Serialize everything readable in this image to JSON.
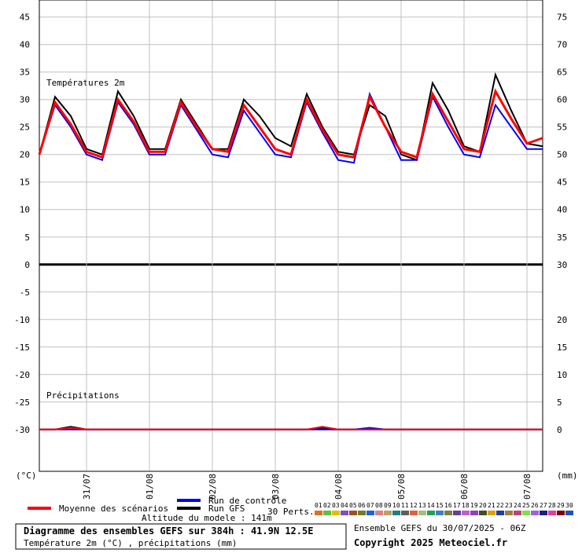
{
  "chart_data": {
    "type": "line",
    "title": "Diagramme des ensembles GEFS sur 384h : 41.9N 12.5E",
    "subtitle": "Température 2m (°C) , précipitations (mm)",
    "run_info": "Ensemble GEFS du 30/07/2025 - 06Z",
    "copyright": "Copyright 2025 Meteociel.fr",
    "altitude": "Altitude du modele : 141m",
    "temp_label": "Températures 2m",
    "precip_label": "Précipitations",
    "y_unit": "(°C)",
    "y2_unit": "(mm)",
    "members_label": "30 Perts.",
    "grid": true,
    "xlim": [
      0,
      192
    ],
    "xticks": [
      {
        "value": 18,
        "label": "31/07"
      },
      {
        "value": 42,
        "label": "01/08"
      },
      {
        "value": 66,
        "label": "02/08"
      },
      {
        "value": 90,
        "label": "03/08"
      },
      {
        "value": 114,
        "label": "04/08"
      },
      {
        "value": 138,
        "label": "05/08"
      },
      {
        "value": 162,
        "label": "06/08"
      },
      {
        "value": 186,
        "label": "07/08"
      }
    ],
    "ylim": [
      -37.6,
      48.1
    ],
    "yticks": [
      -30,
      -25,
      -20,
      -15,
      -10,
      -5,
      0,
      5,
      10,
      15,
      20,
      25,
      30,
      35,
      40,
      45
    ],
    "y2lim": [
      -7.6,
      78.1
    ],
    "y2ticks": [
      0,
      5,
      10,
      15,
      20,
      30,
      35,
      40,
      45,
      50,
      55,
      60,
      65,
      70,
      75
    ],
    "x": [
      0,
      6,
      12,
      18,
      24,
      30,
      36,
      42,
      48,
      54,
      60,
      66,
      72,
      78,
      84,
      90,
      96,
      102,
      108,
      114,
      120,
      126,
      132,
      138,
      144,
      150,
      156,
      162,
      168,
      174,
      180,
      186,
      192
    ],
    "series": [
      {
        "name": "Run GFS",
        "color": "#000000",
        "values": [
          20,
          30.5,
          27,
          21,
          20,
          31.5,
          27,
          21,
          21,
          30,
          25.5,
          21,
          21,
          30,
          27,
          23,
          21.5,
          31,
          25,
          20.5,
          20,
          29,
          27,
          20,
          19,
          33,
          28,
          21.5,
          20.5,
          34.5,
          28,
          22,
          21.5
        ],
        "precip": [
          0,
          0,
          0.5,
          0,
          0,
          0,
          0,
          0,
          0,
          0,
          0,
          0,
          0,
          0,
          0,
          0,
          0,
          0,
          0.3,
          0,
          0,
          0,
          0,
          0,
          0,
          0,
          0,
          0,
          0,
          0,
          0,
          0,
          0
        ]
      },
      {
        "name": "Run de contrôle",
        "color": "#0000ff",
        "values": [
          20,
          29,
          25,
          20,
          19,
          29.5,
          25.5,
          20,
          20,
          29,
          24.5,
          20,
          19.5,
          28,
          24,
          20,
          19.5,
          29.5,
          24,
          19,
          18.5,
          31,
          25,
          19,
          19,
          30.5,
          25,
          20,
          19.5,
          29,
          25,
          21,
          21
        ],
        "precip": [
          0,
          0,
          0,
          0,
          0,
          0,
          0,
          0,
          0,
          0,
          0,
          0,
          0,
          0,
          0,
          0,
          0,
          0,
          0,
          0,
          0,
          0.3,
          0,
          0,
          0,
          0,
          0,
          0,
          0,
          0,
          0,
          0,
          0
        ]
      },
      {
        "name": "Moyenne des scénarios",
        "color": "#ff0000",
        "values": [
          20,
          29.5,
          25.5,
          20.5,
          19.5,
          30,
          26,
          20.5,
          20.5,
          29.5,
          25,
          21,
          20.5,
          29,
          25,
          21,
          20,
          30,
          24.5,
          20,
          19.5,
          30.5,
          25,
          20.5,
          19.5,
          31,
          26,
          21,
          20.5,
          31.5,
          26.5,
          22,
          23
        ],
        "precip": [
          0,
          0,
          0.3,
          0,
          0,
          0,
          0,
          0,
          0,
          0,
          0,
          0,
          0,
          0,
          0,
          0,
          0,
          0,
          0.5,
          0,
          0,
          0,
          0,
          0,
          0,
          0,
          0,
          0,
          0,
          0,
          0,
          0,
          0
        ]
      }
    ],
    "members": [
      {
        "label": "01",
        "color": "#e07020"
      },
      {
        "label": "02",
        "color": "#60c040"
      },
      {
        "label": "03",
        "color": "#e0c000"
      },
      {
        "label": "04",
        "color": "#8050c0"
      },
      {
        "label": "05",
        "color": "#a05020"
      },
      {
        "label": "06",
        "color": "#708020"
      },
      {
        "label": "07",
        "color": "#2060e0"
      },
      {
        "label": "08",
        "color": "#e08080"
      },
      {
        "label": "09",
        "color": "#c0a060"
      },
      {
        "label": "10",
        "color": "#208080"
      },
      {
        "label": "11",
        "color": "#606060"
      },
      {
        "label": "12",
        "color": "#e06040"
      },
      {
        "label": "13",
        "color": "#a0c080"
      },
      {
        "label": "14",
        "color": "#20a060"
      },
      {
        "label": "15",
        "color": "#4080c0"
      },
      {
        "label": "16",
        "color": "#808040"
      },
      {
        "label": "17",
        "color": "#6040a0"
      },
      {
        "label": "18",
        "color": "#c060c0"
      },
      {
        "label": "19",
        "color": "#9040c0"
      },
      {
        "label": "20",
        "color": "#405020"
      },
      {
        "label": "21",
        "color": "#e0a000"
      },
      {
        "label": "22",
        "color": "#2040a0"
      },
      {
        "label": "23",
        "color": "#a08040"
      },
      {
        "label": "24",
        "color": "#c04080"
      },
      {
        "label": "25",
        "color": "#80e040"
      },
      {
        "label": "26",
        "color": "#a060e0"
      },
      {
        "label": "27",
        "color": "#202080"
      },
      {
        "label": "28",
        "color": "#e040a0"
      },
      {
        "label": "29",
        "color": "#800000"
      },
      {
        "label": "30",
        "color": "#2050c0"
      }
    ]
  }
}
